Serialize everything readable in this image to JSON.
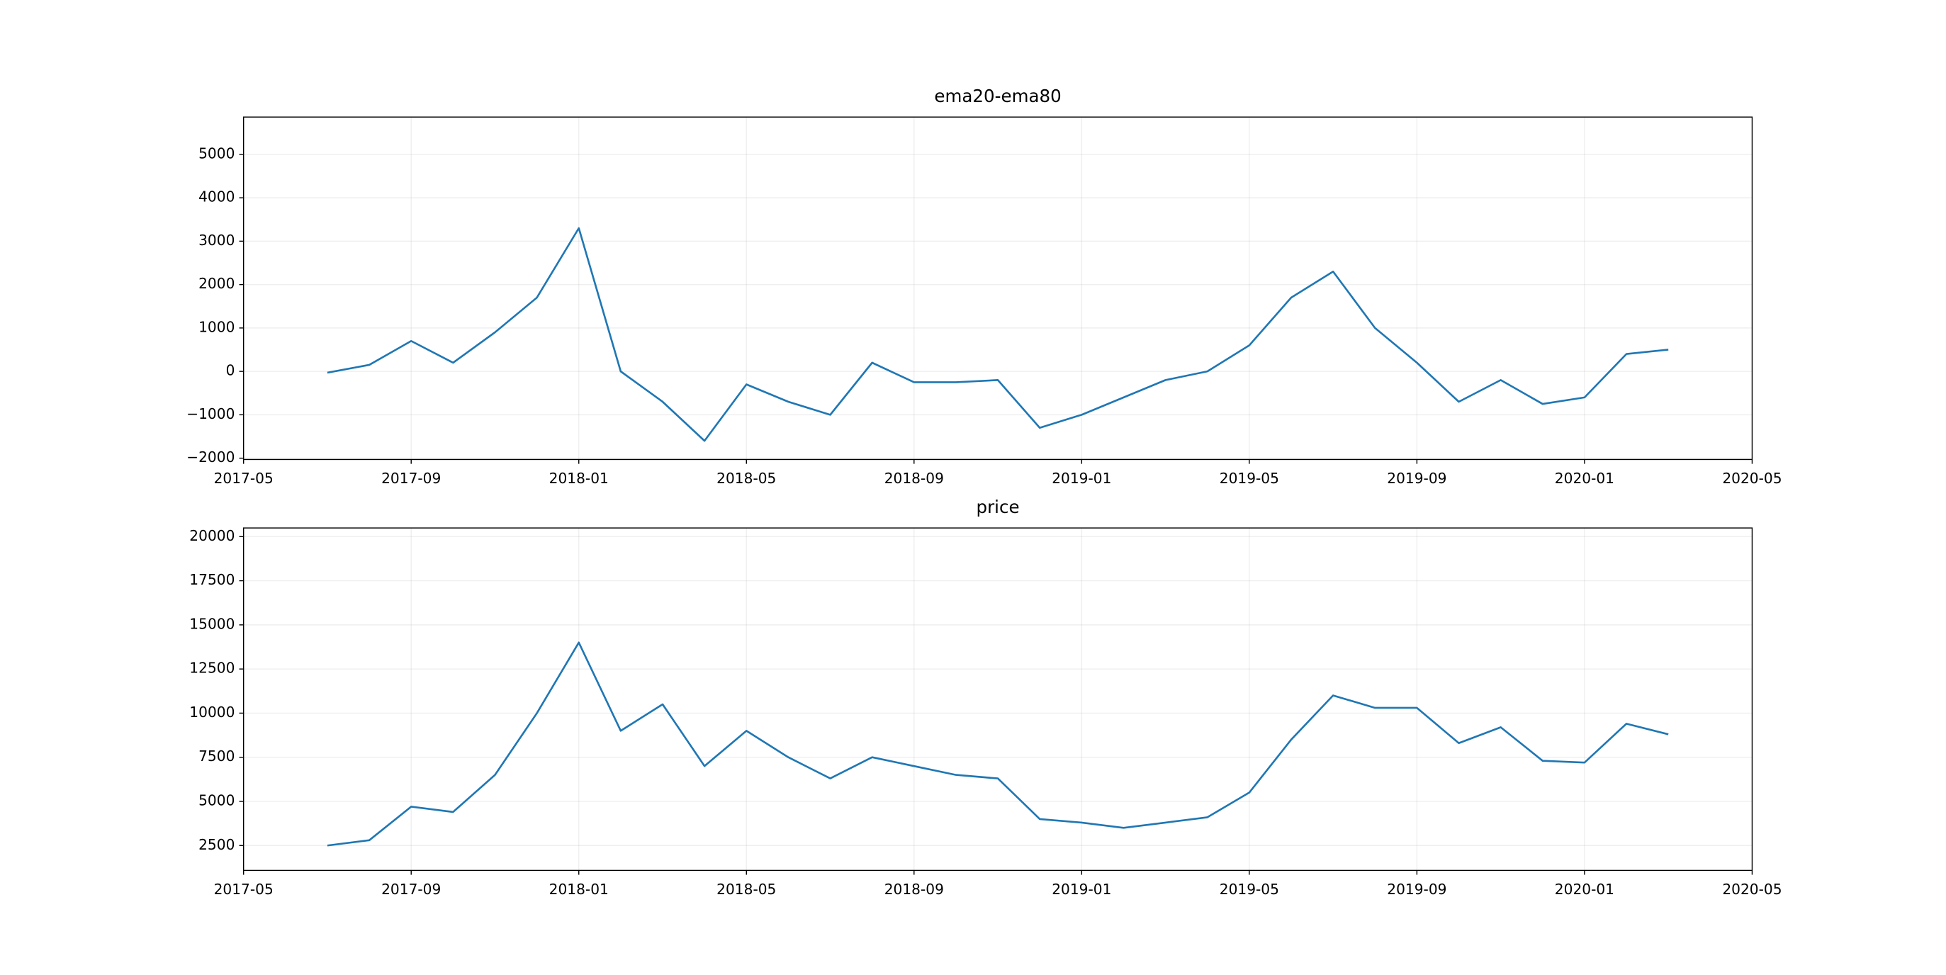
{
  "chart_data": [
    {
      "type": "line",
      "title": "ema20-ema80",
      "x": [
        "2017-07",
        "2017-08",
        "2017-09",
        "2017-10",
        "2017-11",
        "2017-12",
        "2018-01",
        "2018-02",
        "2018-03",
        "2018-04",
        "2018-05",
        "2018-06",
        "2018-07",
        "2018-08",
        "2018-09",
        "2018-10",
        "2018-11",
        "2018-12",
        "2019-01",
        "2019-02",
        "2019-03",
        "2019-04",
        "2019-05",
        "2019-06",
        "2019-07",
        "2019-08",
        "2019-09",
        "2019-10",
        "2019-11",
        "2019-12",
        "2020-01",
        "2020-02",
        "2020-03"
      ],
      "series": [
        {
          "color": "#1f77b4",
          "values": [
            -30,
            150,
            700,
            200,
            900,
            1700,
            3300,
            0,
            -700,
            -1600,
            -300,
            -700,
            -1000,
            200,
            -250,
            -250,
            -200,
            -1300,
            -1000,
            -600,
            -200,
            0,
            600,
            1700,
            2300,
            1000,
            200,
            -700,
            -200,
            -750,
            -600,
            400,
            500
          ]
        }
      ],
      "xlim": [
        "2017-05",
        "2020-05"
      ],
      "xticks": [
        "2017-05",
        "2017-09",
        "2018-01",
        "2018-05",
        "2018-09",
        "2019-01",
        "2019-05",
        "2019-09",
        "2020-01",
        "2020-05"
      ],
      "ylim": [
        -2030,
        5860
      ],
      "yticks": [
        {
          "value": -2000,
          "label": "−2000"
        },
        {
          "value": -1000,
          "label": "−1000"
        },
        0,
        1000,
        2000,
        3000,
        4000,
        5000
      ],
      "grid": true
    },
    {
      "type": "line",
      "title": "price",
      "x": [
        "2017-07",
        "2017-08",
        "2017-09",
        "2017-10",
        "2017-11",
        "2017-12",
        "2018-01",
        "2018-02",
        "2018-03",
        "2018-04",
        "2018-05",
        "2018-06",
        "2018-07",
        "2018-08",
        "2018-09",
        "2018-10",
        "2018-11",
        "2018-12",
        "2019-01",
        "2019-02",
        "2019-03",
        "2019-04",
        "2019-05",
        "2019-06",
        "2019-07",
        "2019-08",
        "2019-09",
        "2019-10",
        "2019-11",
        "2019-12",
        "2020-01",
        "2020-02",
        "2020-03"
      ],
      "series": [
        {
          "color": "#1f77b4",
          "values": [
            2500,
            2800,
            4700,
            4400,
            6500,
            10000,
            14000,
            9000,
            10500,
            7000,
            9000,
            7500,
            6300,
            7500,
            7000,
            6500,
            6300,
            4000,
            3800,
            3500,
            3800,
            4100,
            5500,
            8500,
            11000,
            10300,
            10300,
            8300,
            9200,
            7300,
            7200,
            9400,
            8800
          ]
        }
      ],
      "xlim": [
        "2017-05",
        "2020-05"
      ],
      "xticks": [
        "2017-05",
        "2017-09",
        "2018-01",
        "2018-05",
        "2018-09",
        "2019-01",
        "2019-05",
        "2019-09",
        "2020-01",
        "2020-05"
      ],
      "ylim": [
        1090,
        20490
      ],
      "yticks": [
        2500,
        5000,
        7500,
        10000,
        12500,
        15000,
        17500,
        20000
      ],
      "grid": true
    }
  ]
}
